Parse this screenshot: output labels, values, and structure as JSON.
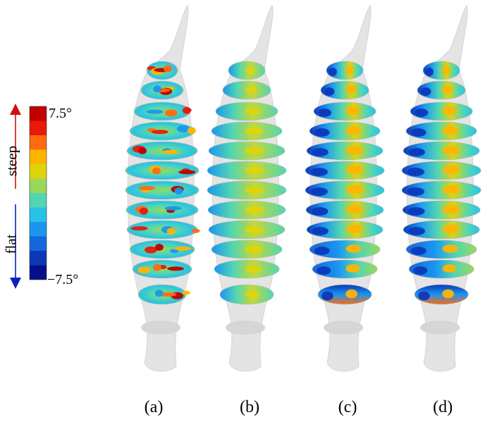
{
  "colorbar": {
    "max_label": "7.5°",
    "min_label": "−7.5°",
    "up_label": "steep",
    "down_label": "flat",
    "colors": [
      "#c00000",
      "#e81a08",
      "#ff6a10",
      "#ffb400",
      "#ddd40c",
      "#9ad85a",
      "#52d6b2",
      "#28c2e8",
      "#1a96f0",
      "#1466dc",
      "#0c38b8",
      "#03108a"
    ],
    "up_arrow_color": "#d01010",
    "down_arrow_color": "#1020c0"
  },
  "panels": [
    {
      "label": "(a)",
      "style": "noisy"
    },
    {
      "label": "(b)",
      "style": "smooth"
    },
    {
      "label": "(c)",
      "style": "gradient"
    },
    {
      "label": "(d)",
      "style": "gradient"
    }
  ]
}
